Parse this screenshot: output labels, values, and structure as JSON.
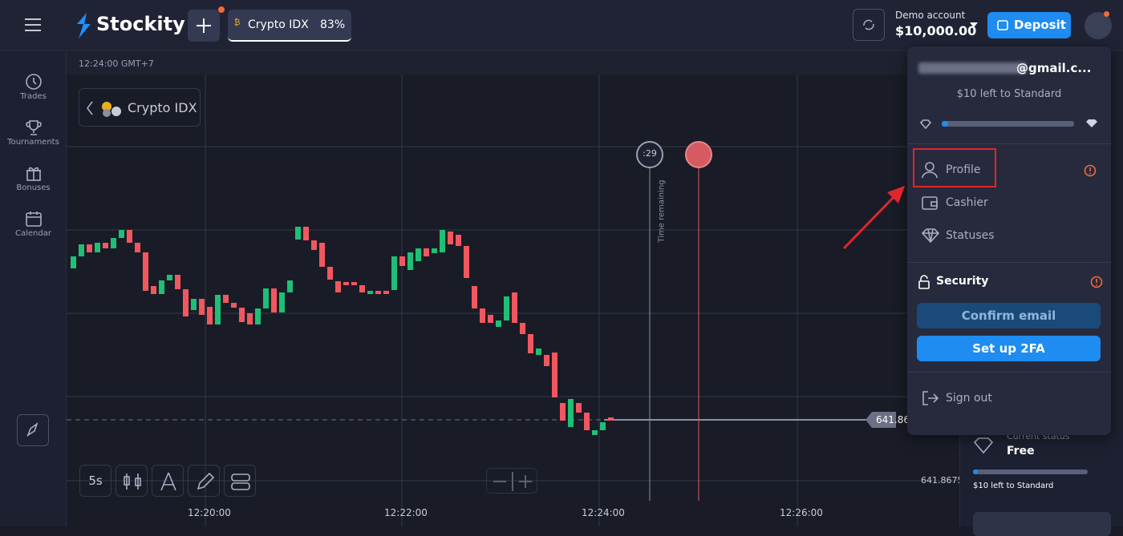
{
  "header": {
    "brand": "Stockity",
    "asset": "Crypto IDX",
    "payout": "83%",
    "account_label": "Demo account",
    "balance": "$10,000.00",
    "deposit": "Deposit"
  },
  "sidebar": {
    "items": [
      "Trades",
      "Tournaments",
      "Bonuses",
      "Calendar"
    ]
  },
  "chart": {
    "clock": "12:24:00 GMT+7",
    "asset": "Crypto IDX",
    "timer": ":29",
    "timer_label": "Time remaining",
    "current_price": "641.86",
    "price_tick": "641.8675",
    "time_ticks": [
      "12:20:00",
      "12:22:00",
      "12:24:00",
      "12:26:00"
    ],
    "timeframe": "5s"
  },
  "menu": {
    "email": "@gmail.c...",
    "progress_note": "$10 left to Standard",
    "items": [
      "Profile",
      "Cashier",
      "Statuses"
    ],
    "security": "Security",
    "confirm_email": "Confirm email",
    "setup_2fa": "Set up 2FA",
    "sign_out": "Sign out"
  },
  "status_panel": {
    "label": "Current status",
    "status": "Free",
    "note": "$10 left to Standard"
  }
}
